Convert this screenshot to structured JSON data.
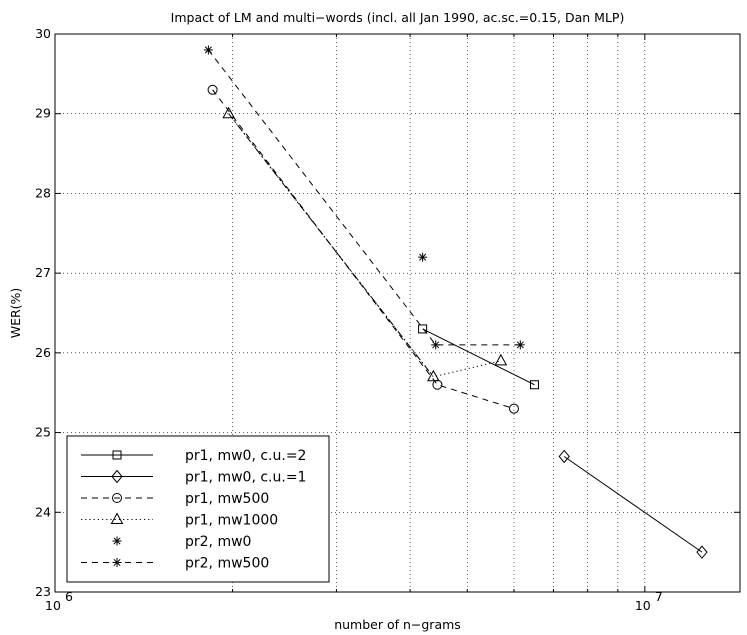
{
  "chart_data": {
    "type": "line",
    "title": "Impact of LM and multi−words (incl. all Jan 1990, ac.sc.=0.15, Dan MLP)",
    "xlabel": "number of n−grams",
    "ylabel": "WER(%)",
    "xscale": "log",
    "xlim": [
      1000000,
      14500000
    ],
    "ylim": [
      23,
      30
    ],
    "grid": "dotted, major and minor",
    "legend_position": "bottom-left",
    "x_ticks": [
      {
        "value": 1000000,
        "base": "10",
        "exp": "6"
      },
      {
        "value": 10000000,
        "base": "10",
        "exp": "7"
      }
    ],
    "y_ticks": [
      "23",
      "24",
      "25",
      "26",
      "27",
      "28",
      "29",
      "30"
    ],
    "series": [
      {
        "name": "pr1, mw0, c.u.=2",
        "line": "solid",
        "marker": "square",
        "x": [
          4200000,
          6500000
        ],
        "y": [
          26.3,
          25.6
        ]
      },
      {
        "name": "pr1, mw0, c.u.=1",
        "line": "solid",
        "marker": "diamond",
        "x": [
          7300000,
          12500000
        ],
        "y": [
          24.7,
          23.5
        ]
      },
      {
        "name": "pr1, mw500",
        "line": "dashed",
        "marker": "circle",
        "x": [
          1850000,
          4450000,
          6000000
        ],
        "y": [
          29.3,
          25.6,
          25.3
        ]
      },
      {
        "name": "pr1, mw1000",
        "line": "dotted",
        "marker": "triangle",
        "x": [
          1970000,
          4380000,
          5700000
        ],
        "y": [
          29.0,
          25.7,
          25.9
        ]
      },
      {
        "name": "pr2, mw0",
        "line": "none",
        "marker": "star",
        "x": [
          4200000
        ],
        "y": [
          27.2
        ]
      },
      {
        "name": "pr2, mw500",
        "line": "dashed",
        "marker": "star",
        "x": [
          1820000,
          4420000,
          6150000
        ],
        "y": [
          29.8,
          26.1,
          26.1
        ]
      }
    ],
    "extra_segments": [
      {
        "line": "dashdot",
        "x": [
          1970000,
          4380000
        ],
        "y": [
          29.0,
          25.7
        ]
      }
    ]
  }
}
